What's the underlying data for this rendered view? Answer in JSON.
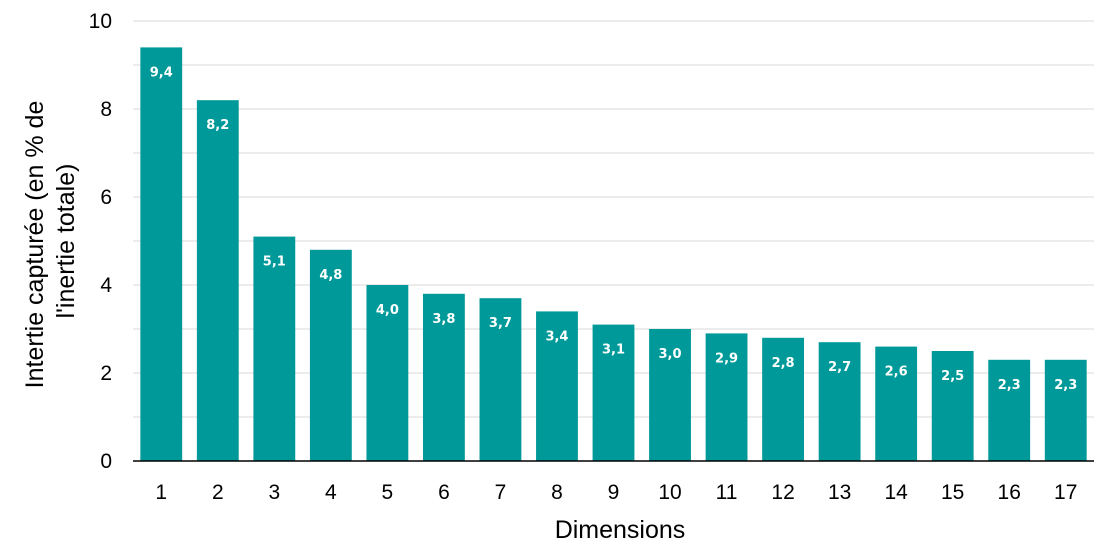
{
  "chart_data": {
    "type": "bar",
    "categories": [
      "1",
      "2",
      "3",
      "4",
      "5",
      "6",
      "7",
      "8",
      "9",
      "10",
      "11",
      "12",
      "13",
      "14",
      "15",
      "16",
      "17"
    ],
    "values": [
      9.4,
      8.2,
      5.1,
      4.8,
      4.0,
      3.8,
      3.7,
      3.4,
      3.1,
      3.0,
      2.9,
      2.8,
      2.7,
      2.6,
      2.5,
      2.3,
      2.3
    ],
    "data_labels": [
      "9,4",
      "8,2",
      "5,1",
      "4,8",
      "4,0",
      "3,8",
      "3,7",
      "3,4",
      "3,1",
      "3,0",
      "2,9",
      "2,8",
      "2,7",
      "2,6",
      "2,5",
      "2,3",
      "2,3"
    ],
    "title": "",
    "xlabel": "Dimensions",
    "ylabel_lines": [
      "Intertie capturée (en % de",
      "l'inertie totale)"
    ],
    "ylim": [
      0,
      10
    ],
    "yticks": [
      0,
      2,
      4,
      6,
      8,
      10
    ],
    "grid": true,
    "legend": "none",
    "bar_color": "#009999",
    "grid_color": "#d9d9d9"
  }
}
